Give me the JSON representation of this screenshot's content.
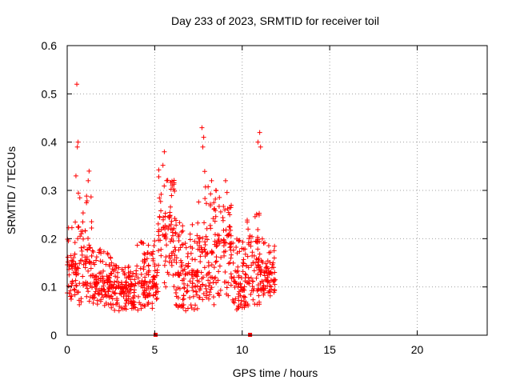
{
  "chart_data": {
    "type": "scatter",
    "title": "Day 233 of 2023, SRMTID for receiver toil",
    "xlabel": "GPS time / hours",
    "ylabel": "SRMTID / TECUs",
    "xlim": [
      0,
      24
    ],
    "ylim": [
      0,
      0.6
    ],
    "xticks": [
      0,
      5,
      10,
      15,
      20
    ],
    "yticks": [
      0,
      0.1,
      0.2,
      0.3,
      0.4,
      0.5,
      0.6
    ],
    "xtick_labels": [
      "0",
      "5",
      "10",
      "15",
      "20"
    ],
    "ytick_labels": [
      "0",
      "0.1",
      "0.2",
      "0.3",
      "0.4",
      "0.5",
      "0.6"
    ],
    "grid": true,
    "marker": "+",
    "series_color": "#ff0000",
    "envelope": {
      "description": "dense '+' point cloud, sampled between segments",
      "segments": [
        {
          "x0": 0.0,
          "x1": 0.6,
          "lo": 0.07,
          "hi": 0.24,
          "center": 0.14
        },
        {
          "x0": 0.6,
          "x1": 1.4,
          "lo": 0.06,
          "hi": 0.3,
          "center": 0.15
        },
        {
          "x0": 1.4,
          "x1": 2.5,
          "lo": 0.06,
          "hi": 0.18,
          "center": 0.11
        },
        {
          "x0": 2.5,
          "x1": 4.0,
          "lo": 0.05,
          "hi": 0.15,
          "center": 0.1
        },
        {
          "x0": 4.0,
          "x1": 5.0,
          "lo": 0.05,
          "hi": 0.2,
          "center": 0.11
        },
        {
          "x0": 5.0,
          "x1": 5.2,
          "lo": 0.07,
          "hi": 0.15,
          "center": 0.1
        },
        {
          "x0": 5.2,
          "x1": 6.2,
          "lo": 0.1,
          "hi": 0.36,
          "center": 0.22
        },
        {
          "x0": 6.2,
          "x1": 7.5,
          "lo": 0.05,
          "hi": 0.24,
          "center": 0.13
        },
        {
          "x0": 7.5,
          "x1": 8.4,
          "lo": 0.06,
          "hi": 0.34,
          "center": 0.17
        },
        {
          "x0": 8.4,
          "x1": 9.4,
          "lo": 0.08,
          "hi": 0.31,
          "center": 0.19
        },
        {
          "x0": 9.4,
          "x1": 10.2,
          "lo": 0.05,
          "hi": 0.2,
          "center": 0.11
        },
        {
          "x0": 10.2,
          "x1": 11.0,
          "lo": 0.06,
          "hi": 0.26,
          "center": 0.14
        },
        {
          "x0": 11.0,
          "x1": 11.9,
          "lo": 0.08,
          "hi": 0.2,
          "center": 0.13
        }
      ],
      "count": 1100,
      "outliers": [
        {
          "x": 0.55,
          "y": 0.52
        },
        {
          "x": 0.62,
          "y": 0.4
        },
        {
          "x": 0.58,
          "y": 0.39
        },
        {
          "x": 7.7,
          "y": 0.43
        },
        {
          "x": 7.8,
          "y": 0.41
        },
        {
          "x": 7.75,
          "y": 0.39
        },
        {
          "x": 11.0,
          "y": 0.42
        },
        {
          "x": 10.9,
          "y": 0.4
        },
        {
          "x": 11.05,
          "y": 0.39
        },
        {
          "x": 1.25,
          "y": 0.34
        },
        {
          "x": 1.2,
          "y": 0.32
        },
        {
          "x": 5.55,
          "y": 0.38
        },
        {
          "x": 8.25,
          "y": 0.32
        },
        {
          "x": 9.05,
          "y": 0.32
        },
        {
          "x": 0.5,
          "y": 0.33
        },
        {
          "x": 6.0,
          "y": 0.31
        }
      ],
      "baseline_markers": [
        {
          "x": 5.05,
          "y": 0.0
        },
        {
          "x": 10.45,
          "y": 0.0
        }
      ]
    }
  }
}
